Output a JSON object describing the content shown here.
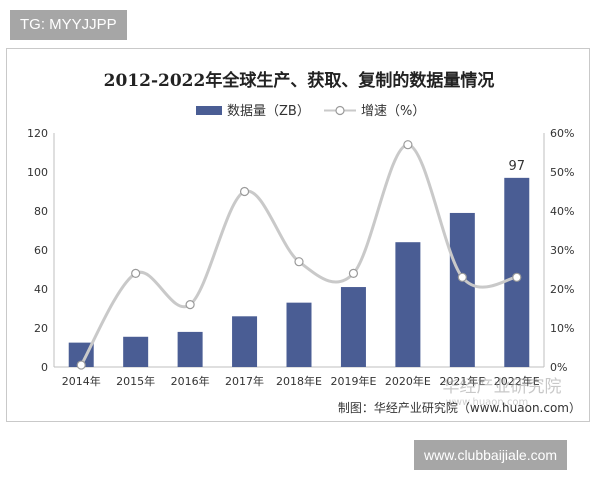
{
  "tag": "TG: MYYJJPP",
  "site_badge": "www.clubbaijiale.com",
  "colors": {
    "bar": "#4a5d94",
    "line": "#c9c9c9",
    "marker_fill": "#ffffff",
    "marker_stroke": "#9a9a9a",
    "text": "#333333",
    "axis": "#bfbfbf"
  },
  "chart_data": {
    "type": "bar",
    "title": "2012-2022年全球生产、获取、复制的数据量情况",
    "categories": [
      "2014年",
      "2015年",
      "2016年",
      "2017年",
      "2018年E",
      "2019年E",
      "2020年E",
      "2021年E",
      "2022年E"
    ],
    "series": [
      {
        "name": "数据量（ZB）",
        "type": "bar",
        "axis": "left",
        "values": [
          12.5,
          15.5,
          18,
          26,
          33,
          41,
          64,
          79,
          97
        ]
      },
      {
        "name": "增速（%）",
        "type": "line",
        "axis": "right",
        "values": [
          0.5,
          24,
          16,
          45,
          27,
          24,
          57,
          23,
          23
        ]
      }
    ],
    "data_labels": [
      {
        "category": "2022年E",
        "series": "数据量（ZB）",
        "text": "97"
      }
    ],
    "yleft_ticks": [
      "0",
      "20",
      "40",
      "60",
      "80",
      "100",
      "120"
    ],
    "yleft_lim": [
      0,
      120
    ],
    "yright_ticks": [
      "0%",
      "10%",
      "20%",
      "30%",
      "40%",
      "50%",
      "60%"
    ],
    "yright_lim": [
      0,
      60
    ],
    "legend_position": "top",
    "grid": false,
    "source": "制图：华经产业研究院（www.huaon.com）",
    "watermark": "华经产业研究院",
    "watermark_url": "www.huaon.com"
  }
}
